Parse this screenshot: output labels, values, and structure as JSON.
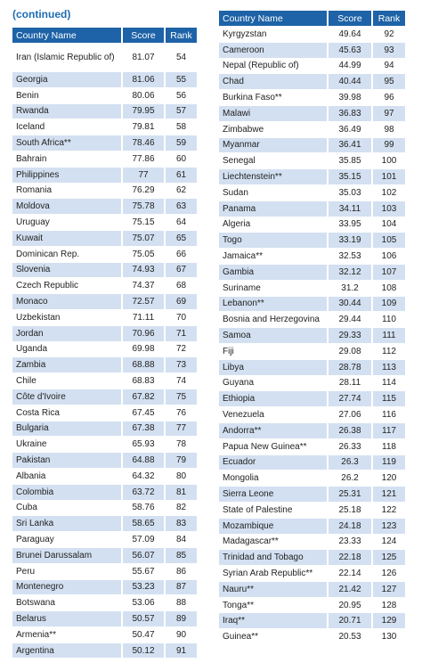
{
  "caption": "(continued)",
  "headers": {
    "country": "Country Name",
    "score": "Score",
    "rank": "Rank"
  },
  "left_rows": [
    {
      "country": "Iran (Islamic Republic of)",
      "score": "81.07",
      "rank": "54"
    },
    {
      "country": "Georgia",
      "score": "81.06",
      "rank": "55"
    },
    {
      "country": "Benin",
      "score": "80.06",
      "rank": "56"
    },
    {
      "country": "Rwanda",
      "score": "79.95",
      "rank": "57"
    },
    {
      "country": "Iceland",
      "score": "79.81",
      "rank": "58"
    },
    {
      "country": "South Africa**",
      "score": "78.46",
      "rank": "59"
    },
    {
      "country": "Bahrain",
      "score": "77.86",
      "rank": "60"
    },
    {
      "country": "Philippines",
      "score": "77",
      "rank": "61"
    },
    {
      "country": "Romania",
      "score": "76.29",
      "rank": "62"
    },
    {
      "country": "Moldova",
      "score": "75.78",
      "rank": "63"
    },
    {
      "country": "Uruguay",
      "score": "75.15",
      "rank": "64"
    },
    {
      "country": "Kuwait",
      "score": "75.07",
      "rank": "65"
    },
    {
      "country": "Dominican Rep.",
      "score": "75.05",
      "rank": "66"
    },
    {
      "country": "Slovenia",
      "score": "74.93",
      "rank": "67"
    },
    {
      "country": "Czech Republic",
      "score": "74.37",
      "rank": "68"
    },
    {
      "country": "Monaco",
      "score": "72.57",
      "rank": "69"
    },
    {
      "country": "Uzbekistan",
      "score": "71.11",
      "rank": "70"
    },
    {
      "country": "Jordan",
      "score": "70.96",
      "rank": "71"
    },
    {
      "country": "Uganda",
      "score": "69.98",
      "rank": "72"
    },
    {
      "country": "Zambia",
      "score": "68.88",
      "rank": "73"
    },
    {
      "country": "Chile",
      "score": "68.83",
      "rank": "74"
    },
    {
      "country": "Côte d'Ivoire",
      "score": "67.82",
      "rank": "75"
    },
    {
      "country": "Costa Rica",
      "score": "67.45",
      "rank": "76"
    },
    {
      "country": "Bulgaria",
      "score": "67.38",
      "rank": "77"
    },
    {
      "country": "Ukraine",
      "score": "65.93",
      "rank": "78"
    },
    {
      "country": "Pakistan",
      "score": "64.88",
      "rank": "79"
    },
    {
      "country": "Albania",
      "score": "64.32",
      "rank": "80"
    },
    {
      "country": "Colombia",
      "score": "63.72",
      "rank": "81"
    },
    {
      "country": "Cuba",
      "score": "58.76",
      "rank": "82"
    },
    {
      "country": "Sri Lanka",
      "score": "58.65",
      "rank": "83"
    },
    {
      "country": "Paraguay",
      "score": "57.09",
      "rank": "84"
    },
    {
      "country": "Brunei Darussalam",
      "score": "56.07",
      "rank": "85"
    },
    {
      "country": "Peru",
      "score": "55.67",
      "rank": "86"
    },
    {
      "country": "Montenegro",
      "score": "53.23",
      "rank": "87"
    },
    {
      "country": "Botswana",
      "score": "53.06",
      "rank": "88"
    },
    {
      "country": "Belarus",
      "score": "50.57",
      "rank": "89"
    },
    {
      "country": "Armenia**",
      "score": "50.47",
      "rank": "90"
    },
    {
      "country": "Argentina",
      "score": "50.12",
      "rank": "91"
    }
  ],
  "right_rows": [
    {
      "country": "Kyrgyzstan",
      "score": "49.64",
      "rank": "92"
    },
    {
      "country": "Cameroon",
      "score": "45.63",
      "rank": "93"
    },
    {
      "country": "Nepal (Republic of)",
      "score": "44.99",
      "rank": "94"
    },
    {
      "country": "Chad",
      "score": "40.44",
      "rank": "95"
    },
    {
      "country": "Burkina Faso**",
      "score": "39.98",
      "rank": "96"
    },
    {
      "country": "Malawi",
      "score": "36.83",
      "rank": "97"
    },
    {
      "country": "Zimbabwe",
      "score": "36.49",
      "rank": "98"
    },
    {
      "country": "Myanmar",
      "score": "36.41",
      "rank": "99"
    },
    {
      "country": "Senegal",
      "score": "35.85",
      "rank": "100"
    },
    {
      "country": "Liechtenstein**",
      "score": "35.15",
      "rank": "101"
    },
    {
      "country": "Sudan",
      "score": "35.03",
      "rank": "102"
    },
    {
      "country": "Panama",
      "score": "34.11",
      "rank": "103"
    },
    {
      "country": "Algeria",
      "score": "33.95",
      "rank": "104"
    },
    {
      "country": "Togo",
      "score": "33.19",
      "rank": "105"
    },
    {
      "country": "Jamaica**",
      "score": "32.53",
      "rank": "106"
    },
    {
      "country": "Gambia",
      "score": "32.12",
      "rank": "107"
    },
    {
      "country": "Suriname",
      "score": "31.2",
      "rank": "108"
    },
    {
      "country": "Lebanon**",
      "score": "30.44",
      "rank": "109"
    },
    {
      "country": "Bosnia and Herzegovina",
      "score": "29.44",
      "rank": "110"
    },
    {
      "country": "Samoa",
      "score": "29.33",
      "rank": "111"
    },
    {
      "country": "Fiji",
      "score": "29.08",
      "rank": "112"
    },
    {
      "country": "Libya",
      "score": "28.78",
      "rank": "113"
    },
    {
      "country": "Guyana",
      "score": "28.11",
      "rank": "114"
    },
    {
      "country": "Ethiopia",
      "score": "27.74",
      "rank": "115"
    },
    {
      "country": "Venezuela",
      "score": "27.06",
      "rank": "116"
    },
    {
      "country": "Andorra**",
      "score": "26.38",
      "rank": "117"
    },
    {
      "country": "Papua New Guinea**",
      "score": "26.33",
      "rank": "118"
    },
    {
      "country": "Ecuador",
      "score": "26.3",
      "rank": "119"
    },
    {
      "country": "Mongolia",
      "score": "26.2",
      "rank": "120"
    },
    {
      "country": "Sierra Leone",
      "score": "25.31",
      "rank": "121"
    },
    {
      "country": "State of Palestine",
      "score": "25.18",
      "rank": "122"
    },
    {
      "country": "Mozambique",
      "score": "24.18",
      "rank": "123"
    },
    {
      "country": "Madagascar**",
      "score": "23.33",
      "rank": "124"
    },
    {
      "country": "Trinidad and Tobago",
      "score": "22.18",
      "rank": "125"
    },
    {
      "country": "Syrian Arab Republic**",
      "score": "22.14",
      "rank": "126"
    },
    {
      "country": "Nauru**",
      "score": "21.42",
      "rank": "127"
    },
    {
      "country": "Tonga**",
      "score": "20.95",
      "rank": "128"
    },
    {
      "country": "Iraq**",
      "score": "20.71",
      "rank": "129"
    },
    {
      "country": "Guinea**",
      "score": "20.53",
      "rank": "130"
    }
  ],
  "colors": {
    "header": "#1e63a7",
    "alt_row": "#d3e0f1",
    "caption": "#1f6db3"
  }
}
